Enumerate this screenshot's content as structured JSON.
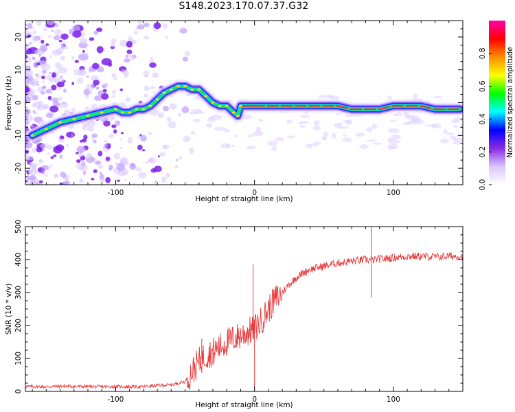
{
  "title": "S148.2023.170.07.37.G32",
  "colors": {
    "snr_line": "#e8383a",
    "axis": "#000000",
    "colormap": [
      "#ffffff",
      "#d9c6ff",
      "#8a2be2",
      "#0000ff",
      "#00ffff",
      "#00ff00",
      "#ffff00",
      "#ff8c00",
      "#ff0000",
      "#ff00aa"
    ]
  },
  "chart_data": [
    {
      "id": "spectrogram",
      "type": "heatmap",
      "xlabel": "Height of straight line (km)",
      "ylabel": "Frequency (Hz)",
      "xlim": [
        -165,
        150
      ],
      "ylim": [
        -25,
        25
      ],
      "xticks": [
        -100,
        0,
        100
      ],
      "yticks": [
        -20,
        -10,
        0,
        10,
        20
      ],
      "ridge": {
        "x": [
          -160,
          -150,
          -140,
          -130,
          -120,
          -110,
          -100,
          -95,
          -90,
          -85,
          -80,
          -75,
          -70,
          -65,
          -60,
          -55,
          -50,
          -45,
          -40,
          -35,
          -30,
          -25,
          -20,
          -15,
          -12,
          -10,
          -5,
          0,
          10,
          20,
          30,
          40,
          50,
          60,
          70,
          80,
          90,
          100,
          110,
          120,
          130,
          140,
          148
        ],
        "y": [
          -10,
          -8,
          -6,
          -5,
          -4,
          -3,
          -2,
          -3,
          -3,
          -2,
          -2,
          -1,
          1,
          3,
          4,
          5,
          5,
          4,
          4,
          2,
          0,
          -1,
          -1,
          -3,
          -4,
          -1,
          -1,
          -1,
          -1,
          -1,
          -1,
          -1,
          -1,
          -1,
          -2,
          -2,
          -2,
          -1,
          -1,
          -1,
          -2,
          -2,
          -2
        ]
      },
      "colorbar": {
        "label": "Normalized spectral amplitude",
        "ticks": [
          "0.0",
          "0.2",
          "0.4",
          "0.6",
          "0.8"
        ],
        "range": [
          0,
          1
        ]
      }
    },
    {
      "id": "snr",
      "type": "line",
      "xlabel": "Height of straight line (km)",
      "ylabel": "SNR (10 * v/v)",
      "xlim": [
        -165,
        150
      ],
      "ylim": [
        0,
        500
      ],
      "xticks": [
        -100,
        0,
        100
      ],
      "yticks": [
        0,
        100,
        200,
        300,
        400,
        500
      ],
      "x": [
        -165,
        -150,
        -140,
        -130,
        -120,
        -110,
        -100,
        -90,
        -80,
        -70,
        -60,
        -55,
        -50,
        -45,
        -40,
        -35,
        -30,
        -25,
        -20,
        -15,
        -10,
        -5,
        0,
        5,
        10,
        15,
        20,
        25,
        30,
        35,
        40,
        50,
        60,
        70,
        80,
        85,
        90,
        100,
        110,
        120,
        130,
        140,
        150
      ],
      "y": [
        15,
        14,
        16,
        15,
        15,
        14,
        15,
        14,
        14,
        18,
        20,
        25,
        30,
        60,
        90,
        110,
        120,
        135,
        150,
        160,
        170,
        180,
        190,
        215,
        250,
        280,
        300,
        325,
        345,
        360,
        370,
        380,
        390,
        395,
        400,
        398,
        402,
        405,
        410,
        410,
        408,
        410,
        410
      ],
      "spikes": [
        {
          "x": -1,
          "y": 385
        },
        {
          "x": 0,
          "y": 10
        },
        {
          "x": 84,
          "y": 500
        },
        {
          "x": 84,
          "y": 285
        },
        {
          "x": -38,
          "y": 160
        },
        {
          "x": -30,
          "y": 80
        }
      ]
    }
  ]
}
